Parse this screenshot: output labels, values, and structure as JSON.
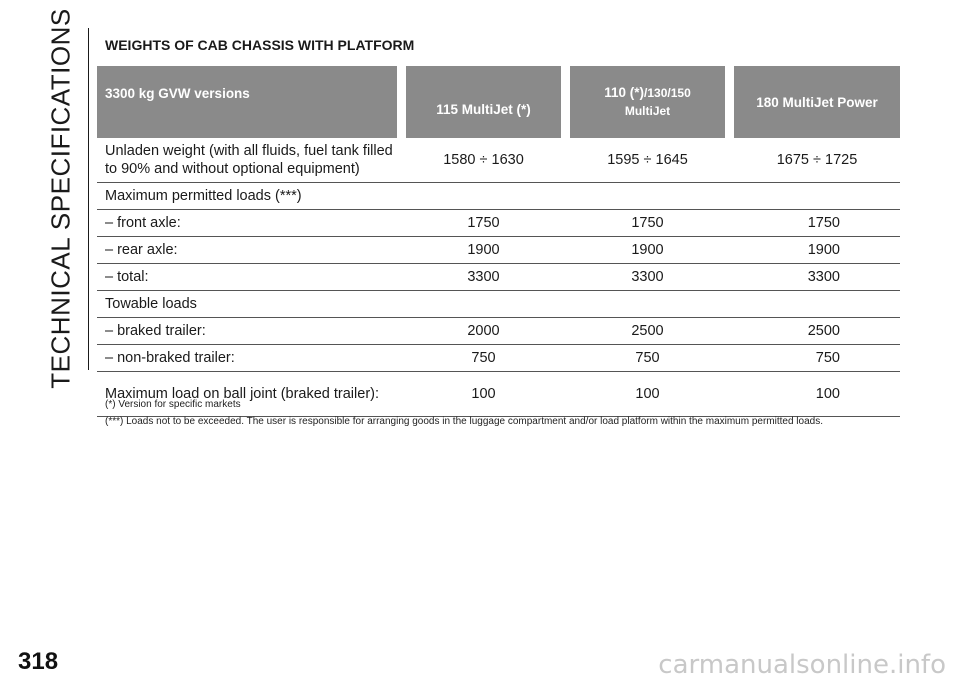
{
  "side_title": "TECHNICAL SPECIFICATIONS",
  "page_number": "318",
  "section_title": "WEIGHTS OF CAB CHASSIS WITH PLATFORM",
  "table": {
    "headers": {
      "col0": "3300 kg GVW versions",
      "col1": "115 MultiJet (*)",
      "col2_main": "110 (*)",
      "col2_small": "/130/150",
      "col2_line2": "MultiJet",
      "col3": "180 MultiJet Power"
    },
    "rows": [
      {
        "label": "Unladen weight (with all fluids, fuel tank filled to 90% and without optional equipment)",
        "v1": "1580 ÷ 1630",
        "v2": "1595 ÷ 1645",
        "v3": "1675 ÷ 1725"
      },
      {
        "label": "Maximum permitted loads (***)",
        "v1": "",
        "v2": "",
        "v3": ""
      },
      {
        "label": "– front axle:",
        "v1": "1750",
        "v2": "1750",
        "v3": "1750"
      },
      {
        "label": "– rear axle:",
        "v1": "1900",
        "v2": "1900",
        "v3": "1900"
      },
      {
        "label": "– total:",
        "v1": "3300",
        "v2": "3300",
        "v3": "3300"
      },
      {
        "label": "Towable loads",
        "v1": "",
        "v2": "",
        "v3": ""
      },
      {
        "label": "– braked trailer:",
        "v1": "2000",
        "v2": "2500",
        "v3": "2500"
      },
      {
        "label": "– non-braked trailer:",
        "v1": "750",
        "v2": "750",
        "v3": "750"
      },
      {
        "label": "Maximum load on ball joint (braked trailer):",
        "v1": "100",
        "v2": "100",
        "v3": "100"
      }
    ]
  },
  "notes": [
    "(*) Version for specific markets",
    "(***) Loads not to be exceeded. The user is responsible for arranging goods in the luggage compartment and/or load platform within the maximum permitted loads."
  ],
  "watermark": "carmanualsonline.info"
}
